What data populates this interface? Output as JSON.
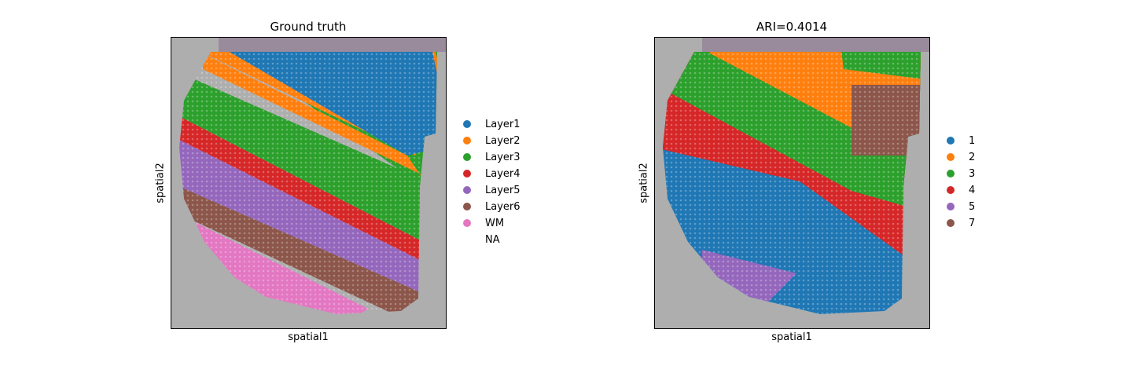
{
  "chart_data": [
    {
      "type": "scatter",
      "title": "Ground truth",
      "xlabel": "spatial1",
      "ylabel": "spatial2",
      "legend_position": "right",
      "legend": [
        {
          "label": "Layer1",
          "color": "#1f77b4"
        },
        {
          "label": "Layer2",
          "color": "#ff7f0e"
        },
        {
          "label": "Layer3",
          "color": "#2ca02c"
        },
        {
          "label": "Layer4",
          "color": "#d62728"
        },
        {
          "label": "Layer5",
          "color": "#9467bd"
        },
        {
          "label": "Layer6",
          "color": "#8c564b"
        },
        {
          "label": "WM",
          "color": "#e377c2"
        },
        {
          "label": "NA",
          "color": ""
        }
      ]
    },
    {
      "type": "scatter",
      "title": "ARI=0.4014",
      "xlabel": "spatial1",
      "ylabel": "spatial2",
      "legend_position": "right",
      "legend": [
        {
          "label": "1",
          "color": "#1f77b4"
        },
        {
          "label": "2",
          "color": "#ff7f0e"
        },
        {
          "label": "3",
          "color": "#2ca02c"
        },
        {
          "label": "4",
          "color": "#d62728"
        },
        {
          "label": "5",
          "color": "#9467bd"
        },
        {
          "label": "7",
          "color": "#8c564b"
        }
      ]
    }
  ]
}
